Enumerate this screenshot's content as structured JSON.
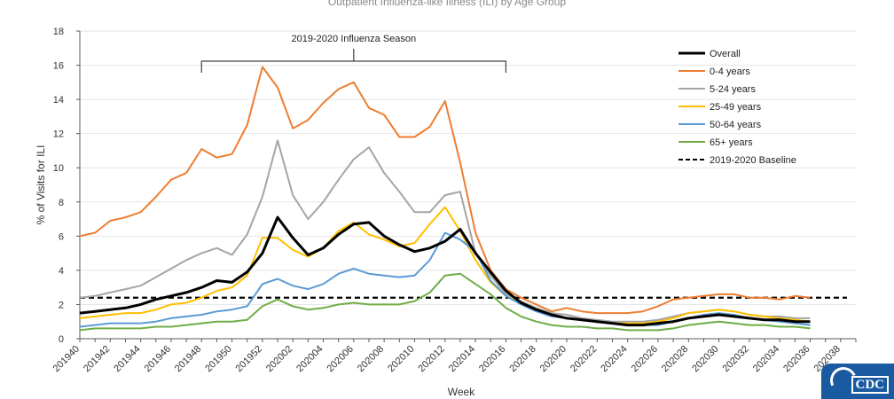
{
  "chart_data": {
    "type": "line",
    "title": "",
    "xlabel": "Week",
    "ylabel": "% of Visits for ILI",
    "ylim": [
      0,
      18
    ],
    "yticks": [
      0,
      2,
      4,
      6,
      8,
      10,
      12,
      14,
      16,
      18
    ],
    "xtick_labels": [
      "201940",
      "201942",
      "201944",
      "201946",
      "201948",
      "201950",
      "201952",
      "202002",
      "202004",
      "202006",
      "202008",
      "202010",
      "202012",
      "202014",
      "202016",
      "202018",
      "202020",
      "202022",
      "202024",
      "202026",
      "202028",
      "202030",
      "202032",
      "202034",
      "202036",
      "202038"
    ],
    "x_week_count": 52,
    "annotation": "2019-2020 Influenza Season",
    "annotation_range": [
      "201948",
      "202016"
    ],
    "legend_position": "right",
    "baseline": {
      "name": "2019-2020 Baseline",
      "value": 2.4,
      "color": "#000000"
    },
    "series": [
      {
        "name": "Overall",
        "color": "#000000",
        "values": [
          1.5,
          1.6,
          1.7,
          1.8,
          2.0,
          2.3,
          2.5,
          2.7,
          3.0,
          3.4,
          3.3,
          3.9,
          5.0,
          7.1,
          5.9,
          4.9,
          5.3,
          6.1,
          6.7,
          6.8,
          6.0,
          5.5,
          5.1,
          5.3,
          5.7,
          6.4,
          5.0,
          3.9,
          2.8,
          2.1,
          1.7,
          1.4,
          1.2,
          1.1,
          1.0,
          0.9,
          0.8,
          0.8,
          0.9,
          1.0,
          1.2,
          1.3,
          1.4,
          1.3,
          1.2,
          1.1,
          1.1,
          1.0,
          1.0
        ]
      },
      {
        "name": "0-4 years",
        "color": "#ed7d31",
        "values": [
          6.0,
          6.2,
          6.9,
          7.1,
          7.4,
          8.3,
          9.3,
          9.7,
          11.1,
          10.6,
          10.8,
          12.5,
          15.9,
          14.7,
          12.3,
          12.8,
          13.8,
          14.6,
          15.0,
          13.5,
          13.1,
          11.8,
          11.8,
          12.4,
          13.9,
          10.3,
          6.2,
          4.0,
          2.9,
          2.4,
          2.0,
          1.6,
          1.8,
          1.6,
          1.5,
          1.5,
          1.5,
          1.6,
          1.9,
          2.3,
          2.4,
          2.5,
          2.6,
          2.6,
          2.4,
          2.4,
          2.3,
          2.5,
          2.4
        ]
      },
      {
        "name": "5-24 years",
        "color": "#a5a5a5",
        "values": [
          2.4,
          2.5,
          2.7,
          2.9,
          3.1,
          3.6,
          4.1,
          4.6,
          5.0,
          5.3,
          4.9,
          6.1,
          8.3,
          11.6,
          8.4,
          7.0,
          8.0,
          9.3,
          10.5,
          11.2,
          9.7,
          8.6,
          7.4,
          7.4,
          8.4,
          8.6,
          5.0,
          3.7,
          2.6,
          2.2,
          1.8,
          1.5,
          1.4,
          1.2,
          1.1,
          1.0,
          1.0,
          1.0,
          1.1,
          1.3,
          1.5,
          1.6,
          1.7,
          1.6,
          1.4,
          1.3,
          1.3,
          1.2,
          1.2
        ]
      },
      {
        "name": "25-49 years",
        "color": "#ffc000",
        "values": [
          1.2,
          1.3,
          1.4,
          1.5,
          1.5,
          1.7,
          2.0,
          2.1,
          2.4,
          2.8,
          3.0,
          3.7,
          5.9,
          5.9,
          5.2,
          4.8,
          5.3,
          6.3,
          6.8,
          6.1,
          5.8,
          5.4,
          5.6,
          6.7,
          7.7,
          6.3,
          4.6,
          3.3,
          2.5,
          2.1,
          1.7,
          1.4,
          1.2,
          1.1,
          1.0,
          0.9,
          0.9,
          0.9,
          1.0,
          1.2,
          1.5,
          1.6,
          1.7,
          1.6,
          1.4,
          1.3,
          1.2,
          1.1,
          1.0
        ]
      },
      {
        "name": "50-64 years",
        "color": "#5b9bd5",
        "values": [
          0.7,
          0.8,
          0.9,
          0.9,
          0.9,
          1.0,
          1.2,
          1.3,
          1.4,
          1.6,
          1.7,
          1.9,
          3.2,
          3.5,
          3.1,
          2.9,
          3.2,
          3.8,
          4.1,
          3.8,
          3.7,
          3.6,
          3.7,
          4.6,
          6.2,
          5.8,
          5.1,
          3.4,
          2.5,
          2.0,
          1.6,
          1.3,
          1.2,
          1.1,
          1.0,
          0.9,
          0.8,
          0.8,
          0.8,
          1.0,
          1.2,
          1.4,
          1.5,
          1.4,
          1.2,
          1.1,
          1.0,
          0.9,
          0.8
        ]
      },
      {
        "name": "65+ years",
        "color": "#70ad47",
        "values": [
          0.5,
          0.6,
          0.6,
          0.6,
          0.6,
          0.7,
          0.7,
          0.8,
          0.9,
          1.0,
          1.0,
          1.1,
          1.9,
          2.3,
          1.9,
          1.7,
          1.8,
          2.0,
          2.1,
          2.0,
          2.0,
          2.0,
          2.2,
          2.7,
          3.7,
          3.8,
          3.2,
          2.6,
          1.8,
          1.3,
          1.0,
          0.8,
          0.7,
          0.7,
          0.6,
          0.6,
          0.5,
          0.5,
          0.5,
          0.6,
          0.8,
          0.9,
          1.0,
          0.9,
          0.8,
          0.8,
          0.7,
          0.7,
          0.6
        ]
      }
    ]
  },
  "header": {
    "title_text": "Outpatient Influenza-like Illness (ILI) by Age Group"
  },
  "logo": {
    "text": "CDC"
  }
}
